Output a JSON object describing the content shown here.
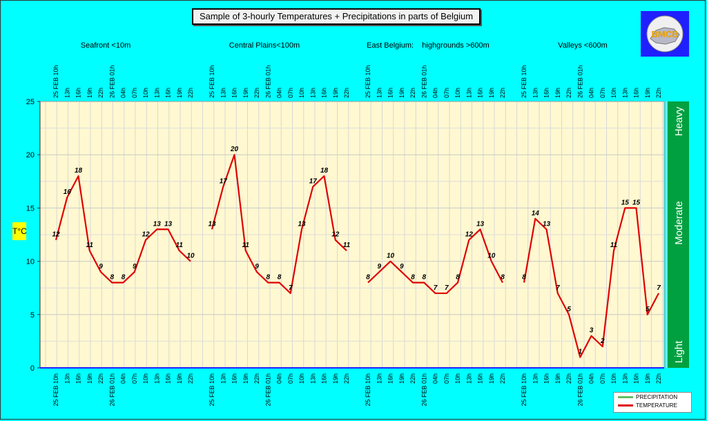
{
  "title": "Sample of 3-hourly Temperatures + Precipitations in parts of Belgium",
  "logo_text": "BMCB",
  "colors": {
    "background": "#00ffff",
    "plot_bg": "#fff8d0",
    "temperature": "#e00000",
    "precip_bar": "#00a040",
    "logo_bg": "#1f1fff",
    "ylabel_bg": "#ffff00"
  },
  "legend": {
    "items": [
      {
        "label": "PRECIPITATION",
        "color": "#60c060"
      },
      {
        "label": "TEMPERATURE",
        "color": "#e00000"
      }
    ]
  },
  "chart_data": {
    "type": "line",
    "ylabel": "T°C",
    "ylim": [
      0,
      25
    ],
    "yticks": [
      0,
      5,
      10,
      15,
      20,
      25
    ],
    "grid": true,
    "legend_position": "bottom-right",
    "time_labels": [
      "25 FEB 10h",
      "13h",
      "16h",
      "19h",
      "22h",
      "26 FEB 01h",
      "04h",
      "07h",
      "10h",
      "13h",
      "16h",
      "19h",
      "22h"
    ],
    "panels": [
      {
        "title": "Seafront <10m",
        "times": [
          "25 FEB 10h",
          "13h",
          "16h",
          "19h",
          "22h",
          "26 FEB 01h",
          "04h",
          "07h",
          "10h",
          "13h",
          "16h",
          "19h",
          "22h"
        ],
        "values": [
          12,
          16,
          18,
          11,
          9,
          8,
          8,
          9,
          12,
          13,
          13,
          11,
          10
        ]
      },
      {
        "title": "Central Plains<100m",
        "times": [
          "25 FEB 10h",
          "13h",
          "16h",
          "19h",
          "22h",
          "26 FEB 01h",
          "04h",
          "07h",
          "10h",
          "13h",
          "16h",
          "19h",
          "22h"
        ],
        "values": [
          13,
          17,
          20,
          11,
          9,
          8,
          8,
          7,
          13,
          17,
          18,
          12,
          11
        ]
      },
      {
        "title": "East Belgium:    highgrounds >600m",
        "times": [
          "25 FEB 10h",
          "13h",
          "16h",
          "19h",
          "22h",
          "26 FEB 01h",
          "04h",
          "07h",
          "10h",
          "13h",
          "16h",
          "19h",
          "22h"
        ],
        "values": [
          8,
          9,
          10,
          9,
          8,
          8,
          7,
          7,
          8,
          12,
          13,
          10,
          8
        ]
      },
      {
        "title": "Valleys <600m",
        "times": [
          "25 FEB 10h",
          "13h",
          "16h",
          "19h",
          "22h",
          "26 FEB 01h",
          "04h",
          "07h",
          "10h",
          "13h",
          "16h",
          "19h",
          "22h"
        ],
        "values": [
          8,
          14,
          13,
          7,
          5,
          1,
          3,
          2,
          11,
          15,
          15,
          5,
          7
        ]
      }
    ],
    "precip_scale": [
      "Heavy",
      "Moderate",
      "Light"
    ]
  }
}
